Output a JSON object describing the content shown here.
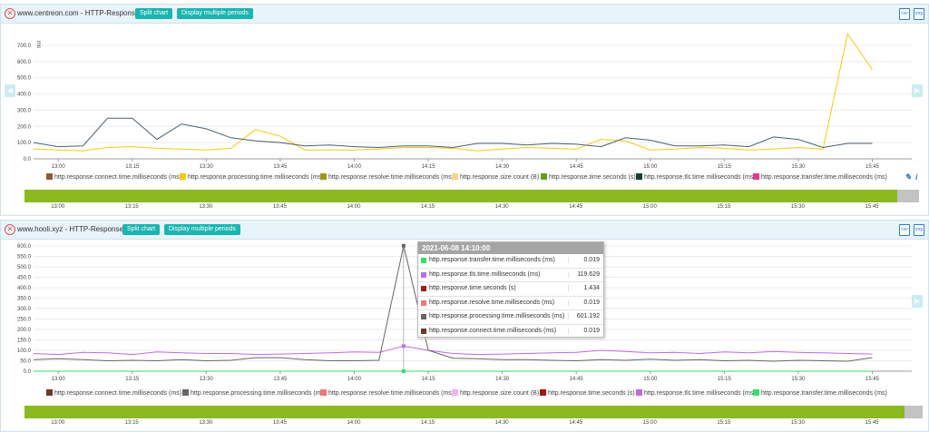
{
  "colors": {
    "accent": "#19b5b0",
    "timeline": "#8ab920",
    "header_bg": "#e8f3fa"
  },
  "panels": [
    {
      "title": "www.centreon.com - HTTP-Response-Time",
      "split_label": "Split chart",
      "periods_label": "Display multiple periods",
      "ylabel": "ms",
      "legend": [
        {
          "label": "http.response.connect.time.milliseconds (ms)",
          "color": "#8c5a3c"
        },
        {
          "label": "http.response.processing.time.milliseconds (ms)",
          "color": "#f6c90e"
        },
        {
          "label": "http.response.resolve.time.milliseconds (ms)",
          "color": "#9a9a1c"
        },
        {
          "label": "http.response.size.count (B)",
          "color": "#f6d58f"
        },
        {
          "label": "http.response.time.seconds (s)",
          "color": "#6a9a1c"
        },
        {
          "label": "http.response.tls.time.milliseconds (ms)",
          "color": "#1e3a34"
        },
        {
          "label": "http.response.transfer.time.milliseconds (ms)",
          "color": "#e83a8c"
        }
      ],
      "timeline_ticks": [
        "13:00",
        "13:15",
        "13:30",
        "13:45",
        "14:00",
        "14:15",
        "14:30",
        "14:45",
        "15:00",
        "15:15",
        "15:30",
        "15:45"
      ]
    },
    {
      "title": "www.hooli.xyz - HTTP-Response-Time",
      "split_label": "Split chart",
      "periods_label": "Display multiple periods",
      "legend": [
        {
          "label": "http.response.connect.time.milliseconds (ms)",
          "color": "#6a3a2a"
        },
        {
          "label": "http.response.processing.time.milliseconds (ms)",
          "color": "#666666"
        },
        {
          "label": "http.response.resolve.time.milliseconds (ms)",
          "color": "#f27878"
        },
        {
          "label": "http.response.size.count (B)",
          "color": "#f4b2f0"
        },
        {
          "label": "http.response.time.seconds (s)",
          "color": "#a01818"
        },
        {
          "label": "http.response.tls.time.milliseconds (ms)",
          "color": "#c06ae0"
        },
        {
          "label": "http.response.transfer.time.milliseconds (ms)",
          "color": "#2ee06a"
        }
      ],
      "timeline_ticks": [
        "13:00",
        "13:15",
        "13:30",
        "13:45",
        "14:00",
        "14:15",
        "14:30",
        "14:45",
        "15:00",
        "15:15",
        "15:30",
        "15:45"
      ]
    }
  ],
  "tooltip": {
    "header": "2021-06-08 14:10:00",
    "rows": [
      {
        "label": "http.response.transfer.time.milliseconds (ms)",
        "value": "0.019",
        "color": "#2ee06a"
      },
      {
        "label": "http.response.tls.time.milliseconds (ms)",
        "value": "119.629",
        "color": "#c06ae0"
      },
      {
        "label": "http.response.time.seconds (s)",
        "value": "1.434",
        "color": "#a01818"
      },
      {
        "label": "http.response.resolve.time.milliseconds (ms)",
        "value": "0.019",
        "color": "#f27878"
      },
      {
        "label": "http.response.processing.time.milliseconds (ms)",
        "value": "601.192",
        "color": "#666666"
      },
      {
        "label": "http.response.connect.time.milliseconds (ms)",
        "value": "0.019",
        "color": "#6a3a2a"
      }
    ]
  },
  "chart_data": [
    {
      "type": "line",
      "ylim": [
        0,
        750
      ],
      "yticks": [
        "0.0",
        "100.0",
        "200.0",
        "300.0",
        "400.0",
        "500.0",
        "600.0",
        "700.0"
      ],
      "ytick_values": [
        0,
        100,
        200,
        300,
        400,
        500,
        600,
        700
      ],
      "xticks": [
        "13:00",
        "13:15",
        "13:30",
        "13:45",
        "14:00",
        "14:15",
        "14:30",
        "14:45",
        "15:00",
        "15:15",
        "15:30",
        "15:45"
      ],
      "x": [
        "12:55",
        "13:00",
        "13:05",
        "13:10",
        "13:15",
        "13:20",
        "13:25",
        "13:30",
        "13:35",
        "13:40",
        "13:45",
        "13:50",
        "13:55",
        "14:00",
        "14:05",
        "14:10",
        "14:15",
        "14:20",
        "14:25",
        "14:30",
        "14:35",
        "14:40",
        "14:45",
        "14:50",
        "14:55",
        "15:00",
        "15:05",
        "15:10",
        "15:15",
        "15:20",
        "15:25",
        "15:30",
        "15:35",
        "15:40",
        "15:45"
      ],
      "series": [
        {
          "name": "http.response.processing.time.milliseconds (ms)",
          "color": "#f6c90e",
          "values": [
            60,
            55,
            50,
            70,
            75,
            65,
            60,
            55,
            65,
            180,
            140,
            55,
            55,
            55,
            60,
            70,
            70,
            65,
            50,
            60,
            70,
            65,
            60,
            120,
            110,
            55,
            60,
            70,
            65,
            55,
            60,
            70,
            60,
            770,
            550
          ]
        },
        {
          "name": "http.response.tls.time.milliseconds (ms)",
          "color": "#4a6070",
          "values": [
            100,
            75,
            80,
            250,
            250,
            120,
            215,
            185,
            130,
            110,
            100,
            80,
            85,
            75,
            70,
            80,
            80,
            70,
            95,
            95,
            85,
            95,
            90,
            75,
            130,
            115,
            80,
            80,
            85,
            75,
            135,
            120,
            70,
            95,
            95
          ]
        }
      ]
    },
    {
      "type": "line",
      "ylim": [
        0,
        600
      ],
      "yticks": [
        "0.0",
        "50.0",
        "100.0",
        "150.0",
        "200.0",
        "250.0",
        "300.0",
        "350.0",
        "400.0",
        "450.0",
        "500.0",
        "550.0",
        "600.0"
      ],
      "ytick_values": [
        0,
        50,
        100,
        150,
        200,
        250,
        300,
        350,
        400,
        450,
        500,
        550,
        600
      ],
      "xticks": [
        "13:00",
        "13:15",
        "13:30",
        "13:45",
        "14:00",
        "14:15",
        "14:30",
        "14:45",
        "15:00",
        "15:15",
        "15:30",
        "15:45"
      ],
      "x": [
        "12:55",
        "13:00",
        "13:05",
        "13:10",
        "13:15",
        "13:20",
        "13:25",
        "13:30",
        "13:35",
        "13:40",
        "13:45",
        "13:50",
        "13:55",
        "14:00",
        "14:05",
        "14:10",
        "14:15",
        "14:20",
        "14:25",
        "14:30",
        "14:35",
        "14:40",
        "14:45",
        "14:50",
        "14:55",
        "15:00",
        "15:05",
        "15:10",
        "15:15",
        "15:20",
        "15:25",
        "15:30",
        "15:35",
        "15:40",
        "15:45"
      ],
      "series": [
        {
          "name": "http.response.tls.time.milliseconds (ms)",
          "color": "#c06ae0",
          "values": [
            85,
            80,
            90,
            88,
            80,
            92,
            88,
            85,
            85,
            80,
            82,
            85,
            88,
            92,
            90,
            120,
            100,
            85,
            80,
            82,
            85,
            88,
            90,
            100,
            95,
            88,
            90,
            85,
            92,
            88,
            95,
            90,
            88,
            85,
            82
          ]
        },
        {
          "name": "http.response.processing.time.milliseconds (ms)",
          "color": "#666666",
          "values": [
            55,
            60,
            55,
            50,
            52,
            50,
            55,
            50,
            52,
            65,
            65,
            55,
            50,
            50,
            52,
            601,
            100,
            62,
            60,
            55,
            55,
            52,
            50,
            55,
            52,
            58,
            52,
            55,
            50,
            52,
            48,
            52,
            50,
            48,
            65
          ]
        },
        {
          "name": "http.response.transfer.time.milliseconds (ms)",
          "color": "#2ee06a",
          "values": [
            0,
            0,
            0,
            0,
            0,
            0,
            0,
            0,
            0,
            0,
            0,
            0,
            0,
            0,
            0,
            0.019,
            0,
            0,
            0,
            0,
            0,
            0,
            0,
            0,
            0,
            0,
            0,
            0,
            0,
            0,
            0,
            0,
            0,
            0,
            0
          ]
        }
      ]
    }
  ]
}
